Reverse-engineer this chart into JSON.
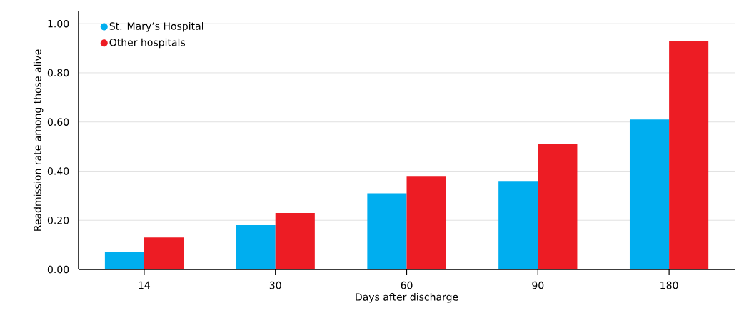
{
  "chart_data": {
    "type": "bar",
    "xlabel": "Days after discharge",
    "ylabel": "Readmission rate among those alive",
    "categories": [
      "14",
      "30",
      "60",
      "90",
      "180"
    ],
    "series": [
      {
        "name": "St. Mary’s Hospital",
        "color": "#00aeef",
        "values": [
          0.07,
          0.18,
          0.31,
          0.36,
          0.61
        ]
      },
      {
        "name": "Other hospitals",
        "color": "#ed1c24",
        "values": [
          0.13,
          0.23,
          0.38,
          0.51,
          0.93
        ]
      }
    ],
    "ylim": [
      0,
      1.05
    ],
    "yticks": [
      {
        "value": 0,
        "label": "0.00"
      },
      {
        "value": 0.2,
        "label": "0.20"
      },
      {
        "value": 0.4,
        "label": "0.40"
      },
      {
        "value": 0.6,
        "label": "0.60"
      },
      {
        "value": 0.8,
        "label": "0.80"
      },
      {
        "value": 1.0,
        "label": "1.00"
      }
    ],
    "grid": "y",
    "legend": "top left"
  }
}
